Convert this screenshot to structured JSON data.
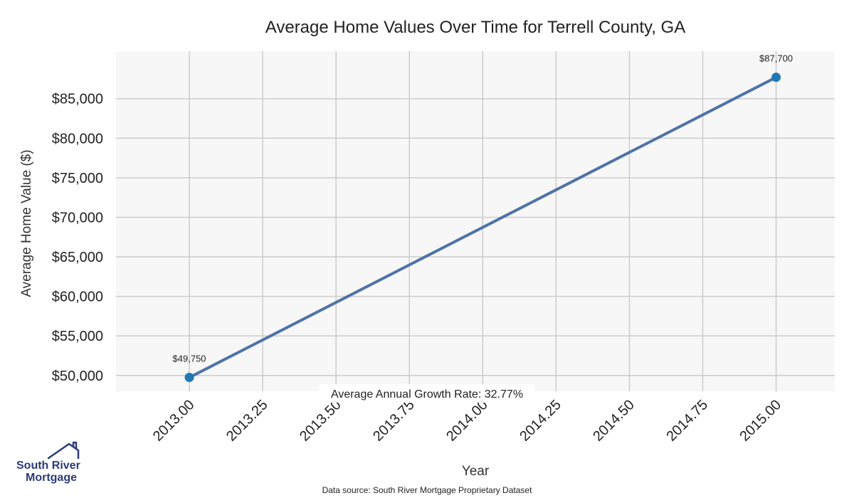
{
  "chart_data": {
    "type": "line",
    "title": "Average Home Values Over Time for Terrell County, GA",
    "xlabel": "Year",
    "ylabel": "Average Home Value ($)",
    "x": [
      2013,
      2015
    ],
    "series": [
      {
        "values": [
          49750,
          87700
        ]
      }
    ],
    "data_labels": [
      "$49,750",
      "$87,700"
    ],
    "xlim": [
      2012.75,
      2015.2
    ],
    "ylim": [
      48000,
      91000
    ],
    "x_ticks": [
      2013.0,
      2013.25,
      2013.5,
      2013.75,
      2014.0,
      2014.25,
      2014.5,
      2014.75,
      2015.0
    ],
    "x_tick_labels": [
      "2013.00",
      "2013.25",
      "2013.50",
      "2013.75",
      "2014.00",
      "2014.25",
      "2014.50",
      "2014.75",
      "2015.00"
    ],
    "y_ticks": [
      50000,
      55000,
      60000,
      65000,
      70000,
      75000,
      80000,
      85000
    ],
    "y_tick_labels": [
      "$50,000",
      "$55,000",
      "$60,000",
      "$65,000",
      "$70,000",
      "$75,000",
      "$80,000",
      "$85,000"
    ],
    "annotation": "Average Annual Growth Rate: 32.77%",
    "grid": true,
    "colors": {
      "line": "#4f73a8",
      "marker": "#1f77b4",
      "plot_bg": "#f7f7f7",
      "grid": "#cccccc"
    }
  },
  "footer": {
    "source": "Data source: South River Mortgage Proprietary Dataset"
  },
  "logo": {
    "line1": "South River",
    "line2": "Mortgage",
    "icon": "house-roof-icon"
  }
}
